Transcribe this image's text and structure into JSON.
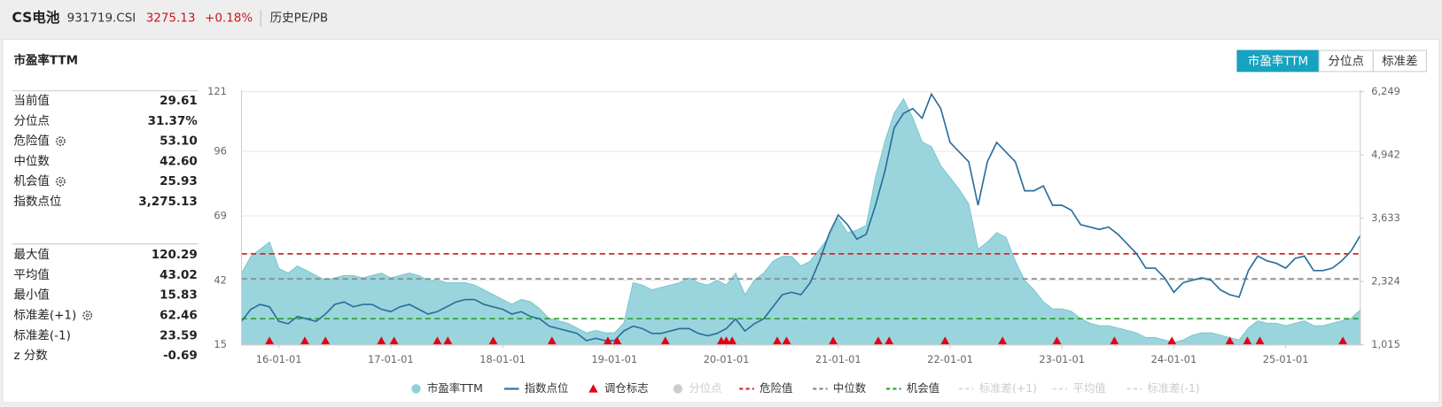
{
  "header": {
    "name": "CS电池",
    "code": "931719.CSI",
    "price": "3275.13",
    "change": "+0.18%",
    "tab": "历史PE/PB"
  },
  "panel_title": "市盈率TTM",
  "controls": {
    "buttons": [
      {
        "label": "市盈率TTM",
        "active": true
      },
      {
        "label": "分位点",
        "active": false
      },
      {
        "label": "标准差",
        "active": false
      }
    ]
  },
  "stats": {
    "groups": [
      [
        {
          "label": "当前值",
          "value": "29.61"
        },
        {
          "label": "分位点",
          "value": "31.37%"
        },
        {
          "label": "危险值",
          "value": "53.10",
          "gear": true
        },
        {
          "label": "中位数",
          "value": "42.60"
        },
        {
          "label": "机会值",
          "value": "25.93",
          "gear": true
        },
        {
          "label": "指数点位",
          "value": "3,275.13"
        }
      ],
      [
        {
          "label": "最大值",
          "value": "120.29"
        },
        {
          "label": "平均值",
          "value": "43.02"
        },
        {
          "label": "最小值",
          "value": "15.83"
        },
        {
          "label": "标准差(+1)",
          "value": "62.46",
          "gear": true
        },
        {
          "label": "标准差(-1)",
          "value": "23.59"
        },
        {
          "label": "z 分数",
          "value": "-0.69"
        }
      ]
    ]
  },
  "chart_data": {
    "type": "area-line",
    "x": [
      "15-09-01",
      "15-10-01",
      "15-11-01",
      "15-12-01",
      "16-01-01",
      "16-02-01",
      "16-03-01",
      "16-04-01",
      "16-05-01",
      "16-06-01",
      "16-07-01",
      "16-08-01",
      "16-09-01",
      "16-10-01",
      "16-11-01",
      "16-12-01",
      "17-01-01",
      "17-02-01",
      "17-03-01",
      "17-04-01",
      "17-05-01",
      "17-06-01",
      "17-07-01",
      "17-08-01",
      "17-09-01",
      "17-10-01",
      "17-11-01",
      "17-12-01",
      "18-01-01",
      "18-02-01",
      "18-03-01",
      "18-04-01",
      "18-05-01",
      "18-06-01",
      "18-07-01",
      "18-08-01",
      "18-09-01",
      "18-10-01",
      "18-11-01",
      "18-12-01",
      "19-01-01",
      "19-02-01",
      "19-03-01",
      "19-04-01",
      "19-05-01",
      "19-06-01",
      "19-07-01",
      "19-08-01",
      "19-09-01",
      "19-10-01",
      "19-11-01",
      "19-12-01",
      "20-01-01",
      "20-02-01",
      "20-03-01",
      "20-04-01",
      "20-05-01",
      "20-06-01",
      "20-07-01",
      "20-08-01",
      "20-09-01",
      "20-10-01",
      "20-11-01",
      "20-12-01",
      "21-01-01",
      "21-02-01",
      "21-03-01",
      "21-04-01",
      "21-05-01",
      "21-06-01",
      "21-07-01",
      "21-08-01",
      "21-09-01",
      "21-10-01",
      "21-11-01",
      "21-12-01",
      "22-01-01",
      "22-02-01",
      "22-03-01",
      "22-04-01",
      "22-05-01",
      "22-06-01",
      "22-07-01",
      "22-08-01",
      "22-09-01",
      "22-10-01",
      "22-11-01",
      "22-12-01",
      "23-01-01",
      "23-02-01",
      "23-03-01",
      "23-04-01",
      "23-05-01",
      "23-06-01",
      "23-07-01",
      "23-08-01",
      "23-09-01",
      "23-10-01",
      "23-11-01",
      "23-12-01",
      "24-01-01",
      "24-02-01",
      "24-03-01",
      "24-04-01",
      "24-05-01",
      "24-06-01",
      "24-07-01",
      "24-08-01",
      "24-09-01",
      "24-10-01",
      "24-11-01",
      "24-12-01",
      "25-01-01",
      "25-02-01",
      "25-03-01",
      "25-04-01",
      "25-05-01",
      "25-06-01",
      "25-07-01",
      "25-08-01",
      "25-09-01"
    ],
    "series": [
      {
        "name": "市盈率TTM",
        "color": "#8fd0d9",
        "values": [
          45,
          52,
          55,
          58,
          47,
          45,
          48,
          46,
          44,
          42,
          43,
          44,
          44,
          43,
          44,
          45,
          43,
          44,
          45,
          44,
          42,
          42,
          41,
          41,
          41,
          40,
          38,
          36,
          34,
          32,
          34,
          33,
          30,
          26,
          25,
          24,
          22,
          20,
          21,
          20,
          20,
          24,
          41,
          40,
          38,
          39,
          40,
          41,
          43,
          41,
          40,
          42,
          40,
          45,
          36,
          42,
          45,
          50,
          52,
          52,
          48,
          50,
          55,
          60,
          68,
          62,
          63,
          65,
          85,
          100,
          112,
          118,
          110,
          100,
          98,
          90,
          85,
          80,
          74,
          55,
          58,
          62,
          60,
          50,
          42,
          38,
          33,
          30,
          30,
          29,
          26,
          24,
          23,
          23,
          22,
          21,
          20,
          18,
          18,
          17,
          16,
          17,
          19,
          20,
          20,
          19,
          18,
          17,
          22,
          25,
          24,
          24,
          23,
          24,
          25,
          23,
          23,
          24,
          25,
          26,
          29.61
        ]
      },
      {
        "name": "指数点位",
        "color": "#2a6f9b",
        "axis": "y2",
        "values": [
          1500,
          1750,
          1850,
          1800,
          1500,
          1450,
          1600,
          1550,
          1500,
          1650,
          1850,
          1900,
          1800,
          1850,
          1850,
          1750,
          1700,
          1800,
          1850,
          1750,
          1650,
          1700,
          1800,
          1900,
          1950,
          1950,
          1850,
          1800,
          1750,
          1650,
          1700,
          1600,
          1550,
          1400,
          1350,
          1300,
          1250,
          1100,
          1150,
          1100,
          1100,
          1300,
          1400,
          1350,
          1250,
          1250,
          1300,
          1350,
          1350,
          1250,
          1200,
          1250,
          1350,
          1550,
          1300,
          1450,
          1550,
          1800,
          2050,
          2100,
          2050,
          2300,
          2750,
          3300,
          3700,
          3500,
          3200,
          3300,
          3900,
          4600,
          5500,
          5800,
          5900,
          5700,
          6200,
          5900,
          5200,
          5000,
          4800,
          3900,
          4800,
          5200,
          5000,
          4800,
          4200,
          4200,
          4300,
          3900,
          3900,
          3800,
          3500,
          3450,
          3400,
          3450,
          3300,
          3100,
          2900,
          2600,
          2600,
          2400,
          2100,
          2300,
          2350,
          2400,
          2350,
          2150,
          2050,
          2000,
          2550,
          2850,
          2750,
          2700,
          2600,
          2800,
          2850,
          2550,
          2550,
          2600,
          2750,
          2950,
          3275.13
        ]
      }
    ],
    "markers": {
      "name": "调仓标志",
      "color": "#e60012",
      "x": [
        "15-12-01",
        "16-03-25",
        "16-06-01",
        "16-12-01",
        "17-01-12",
        "17-06-01",
        "17-07-05",
        "17-12-01",
        "18-06-10",
        "18-12-10",
        "19-01-10",
        "19-06-15",
        "19-12-15",
        "20-01-01",
        "20-01-20",
        "20-06-15",
        "20-07-15",
        "20-12-15",
        "21-05-10",
        "21-06-15",
        "21-12-15",
        "22-06-20",
        "22-12-15",
        "23-06-20",
        "23-12-25",
        "24-07-01",
        "24-08-28",
        "24-10-08",
        "25-07-05"
      ]
    },
    "hidden_series": [
      {
        "name": "分位点",
        "color": "#cccccc",
        "visible": false
      }
    ],
    "reference_lines": [
      {
        "name": "危险值",
        "value": 53.1,
        "color": "#d62728",
        "visible": true
      },
      {
        "name": "中位数",
        "value": 42.6,
        "color": "#888888",
        "visible": true
      },
      {
        "name": "机会值",
        "value": 25.93,
        "color": "#2ca02c",
        "visible": true
      },
      {
        "name": "标准差(+1)",
        "value": 62.46,
        "color": "#dddddd",
        "visible": false
      },
      {
        "name": "平均值",
        "value": 43.02,
        "color": "#dddddd",
        "visible": false
      },
      {
        "name": "标准差(-1)",
        "value": 23.59,
        "color": "#dddddd",
        "visible": false
      }
    ],
    "xlim": [
      "15-09-01",
      "25-09-01"
    ],
    "xticks": [
      "16-01-01",
      "17-01-01",
      "18-01-01",
      "19-01-01",
      "20-01-01",
      "21-01-01",
      "22-01-01",
      "23-01-01",
      "24-01-01",
      "25-01-01"
    ],
    "ylim": [
      15,
      121
    ],
    "yticks": [
      15,
      42,
      69,
      96,
      121
    ],
    "y2lim": [
      1015,
      6249
    ],
    "y2ticks": [
      {
        "value": 1015,
        "label": "1,015"
      },
      {
        "value": 2324,
        "label": "2,324"
      },
      {
        "value": 3633,
        "label": "3,633"
      },
      {
        "value": 4942,
        "label": "4,942"
      },
      {
        "value": 6249,
        "label": "6,249"
      }
    ],
    "grid": true
  }
}
